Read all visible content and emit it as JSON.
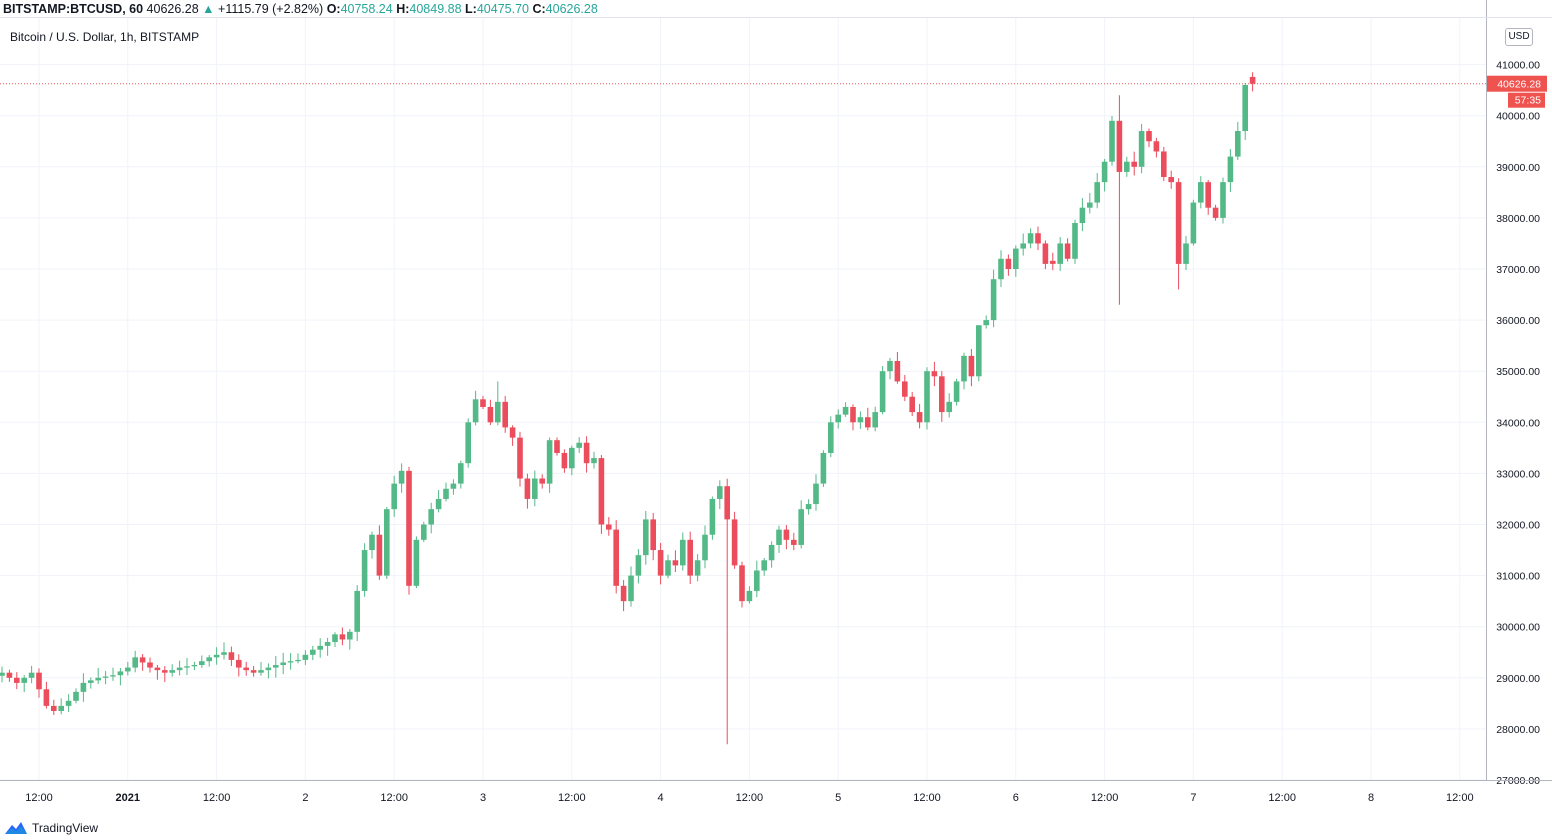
{
  "header": {
    "symbol": "BITSTAMP:BTCUSD, 60",
    "last": "40626.28",
    "arrow": "▲",
    "change": "+1115.79 (+2.82%)",
    "o_label": "O:",
    "o_value": "40758.24",
    "h_label": "H:",
    "h_value": "40849.88",
    "l_label": "L:",
    "l_value": "40475.70",
    "c_label": "C:",
    "c_value": "40626.28"
  },
  "subtitle": "Bitcoin / U.S. Dollar, 1h, BITSTAMP",
  "currency_button": "USD",
  "footer": {
    "brand": "TradingView",
    "icon": "tradingview-logo-icon"
  },
  "colors": {
    "up": "#53b987",
    "down": "#eb4d5c",
    "grid": "#f0f3fa",
    "price_tag": "#ef5350"
  },
  "chart_data": {
    "type": "candlestick",
    "title": "Bitcoin / U.S. Dollar, 1h, BITSTAMP",
    "interval": "1h",
    "y_axis_side": "right",
    "ylim": [
      27000,
      41500
    ],
    "y_ticks": [
      "27000.00",
      "28000.00",
      "29000.00",
      "30000.00",
      "31000.00",
      "32000.00",
      "33000.00",
      "34000.00",
      "35000.00",
      "36000.00",
      "37000.00",
      "38000.00",
      "39000.00",
      "40000.00",
      "41000.00"
    ],
    "x_ticks": [
      {
        "label": "12:00",
        "bar": 0
      },
      {
        "label": "2021",
        "bar": 12,
        "bold": true
      },
      {
        "label": "12:00",
        "bar": 24
      },
      {
        "label": "2",
        "bar": 36
      },
      {
        "label": "12:00",
        "bar": 48
      },
      {
        "label": "3",
        "bar": 60
      },
      {
        "label": "12:00",
        "bar": 72
      },
      {
        "label": "4",
        "bar": 84
      },
      {
        "label": "12:00",
        "bar": 96
      },
      {
        "label": "5",
        "bar": 108
      },
      {
        "label": "12:00",
        "bar": 120
      },
      {
        "label": "6",
        "bar": 132
      },
      {
        "label": "12:00",
        "bar": 144
      },
      {
        "label": "7",
        "bar": 156
      },
      {
        "label": "12:00",
        "bar": 168
      },
      {
        "label": "8",
        "bar": 180
      },
      {
        "label": "12:00",
        "bar": 192
      }
    ],
    "first_bar_offset": -5,
    "last_price": 40626.28,
    "last_price_label": "40626.28",
    "countdown_label": "57:35",
    "anchors": [
      [
        -5,
        29100
      ],
      [
        -3,
        28900
      ],
      [
        -1,
        29100
      ],
      [
        1,
        28450
      ],
      [
        2,
        28350
      ],
      [
        4,
        28550
      ],
      [
        6,
        28900
      ],
      [
        8,
        29000
      ],
      [
        10,
        29050
      ],
      [
        12,
        29200
      ],
      [
        13,
        29400
      ],
      [
        15,
        29200
      ],
      [
        17,
        29100
      ],
      [
        19,
        29200
      ],
      [
        21,
        29250
      ],
      [
        23,
        29400
      ],
      [
        25,
        29500
      ],
      [
        27,
        29200
      ],
      [
        29,
        29100
      ],
      [
        31,
        29200
      ],
      [
        33,
        29300
      ],
      [
        35,
        29350
      ],
      [
        37,
        29550
      ],
      [
        39,
        29700
      ],
      [
        40,
        29850
      ],
      [
        41,
        29750
      ],
      [
        42,
        29900
      ],
      [
        43,
        30700
      ],
      [
        44,
        31500
      ],
      [
        45,
        31800
      ],
      [
        46,
        31000
      ],
      [
        47,
        32300
      ],
      [
        48,
        32800
      ],
      [
        49,
        33050
      ],
      [
        50,
        30800
      ],
      [
        51,
        31700
      ],
      [
        52,
        32000
      ],
      [
        53,
        32300
      ],
      [
        54,
        32500
      ],
      [
        55,
        32700
      ],
      [
        56,
        32800
      ],
      [
        57,
        33200
      ],
      [
        58,
        34000
      ],
      [
        59,
        34450
      ],
      [
        60,
        34300
      ],
      [
        61,
        34000
      ],
      [
        62,
        34400
      ],
      [
        63,
        33900
      ],
      [
        64,
        33700
      ],
      [
        65,
        32900
      ],
      [
        66,
        32500
      ],
      [
        67,
        32900
      ],
      [
        68,
        32800
      ],
      [
        69,
        33650
      ],
      [
        70,
        33400
      ],
      [
        71,
        33100
      ],
      [
        72,
        33500
      ],
      [
        73,
        33600
      ],
      [
        74,
        33200
      ],
      [
        75,
        33300
      ],
      [
        76,
        32000
      ],
      [
        77,
        31900
      ],
      [
        78,
        30800
      ],
      [
        79,
        30500
      ],
      [
        80,
        31000
      ],
      [
        81,
        31400
      ],
      [
        82,
        32100
      ],
      [
        83,
        31500
      ],
      [
        84,
        31000
      ],
      [
        85,
        31300
      ],
      [
        86,
        31200
      ],
      [
        87,
        31700
      ],
      [
        88,
        31000
      ],
      [
        89,
        31300
      ],
      [
        90,
        31800
      ],
      [
        91,
        32500
      ],
      [
        92,
        32750
      ],
      [
        93,
        32100
      ],
      [
        94,
        31200
      ],
      [
        95,
        30500
      ],
      [
        96,
        30700
      ],
      [
        97,
        31100
      ],
      [
        98,
        31300
      ],
      [
        99,
        31600
      ],
      [
        100,
        31900
      ],
      [
        101,
        31700
      ],
      [
        102,
        31600
      ],
      [
        103,
        32300
      ],
      [
        104,
        32400
      ],
      [
        105,
        32800
      ],
      [
        106,
        33400
      ],
      [
        107,
        34000
      ],
      [
        108,
        34150
      ],
      [
        109,
        34300
      ],
      [
        110,
        34000
      ],
      [
        111,
        34100
      ],
      [
        112,
        33900
      ],
      [
        113,
        34200
      ],
      [
        114,
        35000
      ],
      [
        115,
        35200
      ],
      [
        116,
        34800
      ],
      [
        117,
        34500
      ],
      [
        118,
        34200
      ],
      [
        119,
        34000
      ],
      [
        120,
        35000
      ],
      [
        121,
        34900
      ],
      [
        122,
        34200
      ],
      [
        123,
        34400
      ],
      [
        124,
        34800
      ],
      [
        125,
        35300
      ],
      [
        126,
        34900
      ],
      [
        127,
        35900
      ],
      [
        128,
        36000
      ],
      [
        129,
        36800
      ],
      [
        130,
        37200
      ],
      [
        131,
        37000
      ],
      [
        132,
        37400
      ],
      [
        133,
        37500
      ],
      [
        134,
        37700
      ],
      [
        135,
        37500
      ],
      [
        136,
        37100
      ],
      [
        137,
        37100
      ],
      [
        138,
        37500
      ],
      [
        139,
        37200
      ],
      [
        140,
        37900
      ],
      [
        141,
        38200
      ],
      [
        142,
        38300
      ],
      [
        143,
        38700
      ],
      [
        144,
        39100
      ],
      [
        145,
        39900
      ],
      [
        146,
        38900
      ],
      [
        147,
        39100
      ],
      [
        148,
        39000
      ],
      [
        149,
        39700
      ],
      [
        150,
        39500
      ],
      [
        151,
        39300
      ],
      [
        152,
        38800
      ],
      [
        153,
        38700
      ],
      [
        154,
        37100
      ],
      [
        155,
        37500
      ],
      [
        156,
        38300
      ],
      [
        157,
        38700
      ],
      [
        158,
        38200
      ],
      [
        159,
        38000
      ],
      [
        160,
        38700
      ],
      [
        161,
        39200
      ],
      [
        162,
        39700
      ],
      [
        163,
        40600
      ],
      [
        164,
        40626.28
      ]
    ]
  }
}
